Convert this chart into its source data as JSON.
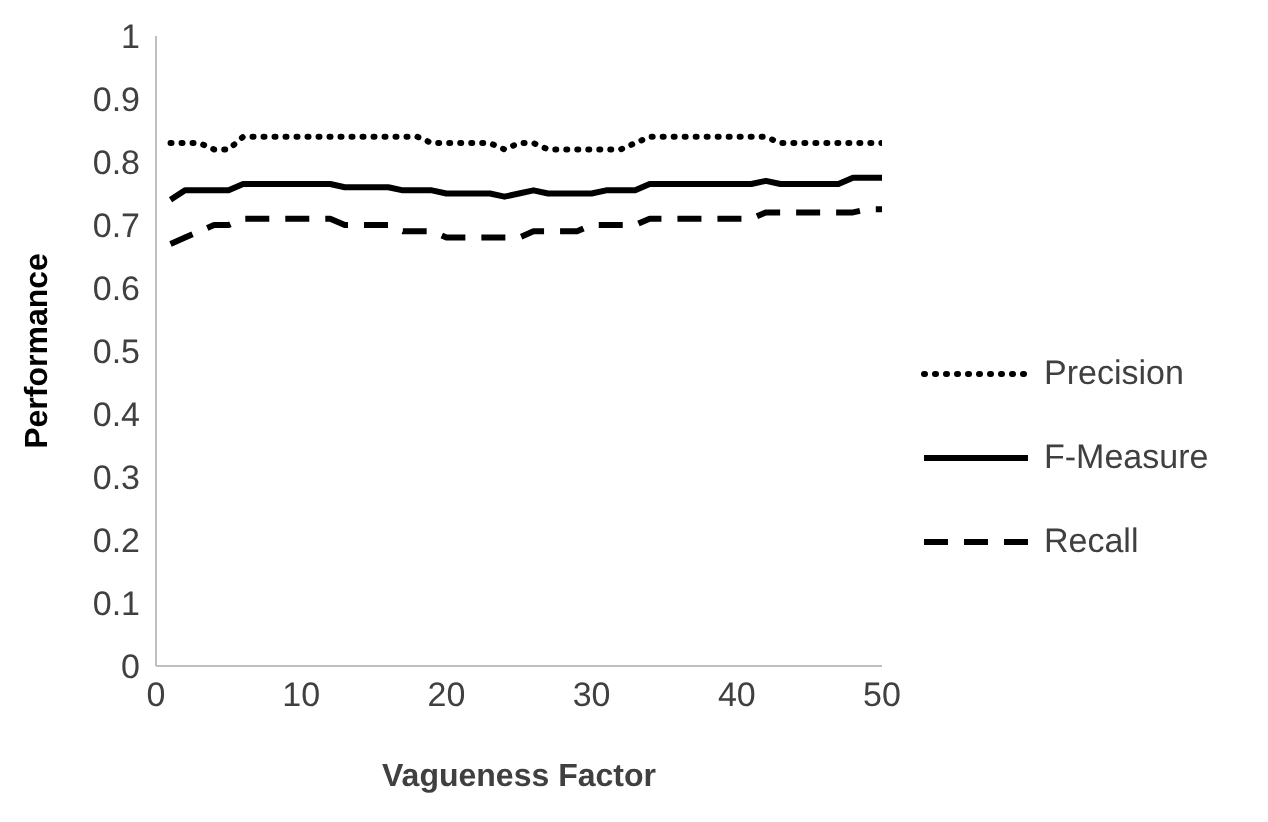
{
  "chart_data": {
    "type": "line",
    "xlabel": "Vagueness Factor",
    "ylabel": "Performance",
    "x": [
      1,
      2,
      3,
      4,
      5,
      6,
      7,
      8,
      9,
      10,
      11,
      12,
      13,
      14,
      15,
      16,
      17,
      18,
      19,
      20,
      21,
      22,
      23,
      24,
      25,
      26,
      27,
      28,
      29,
      30,
      31,
      32,
      33,
      34,
      35,
      36,
      37,
      38,
      39,
      40,
      41,
      42,
      43,
      44,
      45,
      46,
      47,
      48,
      49,
      50
    ],
    "series": [
      {
        "name": "Precision",
        "color": "#000000",
        "line_style": "dotted",
        "values": [
          0.83,
          0.83,
          0.83,
          0.82,
          0.82,
          0.84,
          0.84,
          0.84,
          0.84,
          0.84,
          0.84,
          0.84,
          0.84,
          0.84,
          0.84,
          0.84,
          0.84,
          0.84,
          0.83,
          0.83,
          0.83,
          0.83,
          0.83,
          0.82,
          0.83,
          0.83,
          0.82,
          0.82,
          0.82,
          0.82,
          0.82,
          0.82,
          0.83,
          0.84,
          0.84,
          0.84,
          0.84,
          0.84,
          0.84,
          0.84,
          0.84,
          0.84,
          0.83,
          0.83,
          0.83,
          0.83,
          0.83,
          0.83,
          0.83,
          0.83
        ]
      },
      {
        "name": "F-Measure",
        "color": "#000000",
        "line_style": "solid",
        "values": [
          0.74,
          0.755,
          0.755,
          0.755,
          0.755,
          0.765,
          0.765,
          0.765,
          0.765,
          0.765,
          0.765,
          0.765,
          0.76,
          0.76,
          0.76,
          0.76,
          0.755,
          0.755,
          0.755,
          0.75,
          0.75,
          0.75,
          0.75,
          0.745,
          0.75,
          0.755,
          0.75,
          0.75,
          0.75,
          0.75,
          0.755,
          0.755,
          0.755,
          0.765,
          0.765,
          0.765,
          0.765,
          0.765,
          0.765,
          0.765,
          0.765,
          0.77,
          0.765,
          0.765,
          0.765,
          0.765,
          0.765,
          0.775,
          0.775,
          0.775
        ]
      },
      {
        "name": "Recall",
        "color": "#000000",
        "line_style": "dashed",
        "values": [
          0.67,
          0.68,
          0.69,
          0.7,
          0.7,
          0.71,
          0.71,
          0.71,
          0.71,
          0.71,
          0.71,
          0.71,
          0.7,
          0.7,
          0.7,
          0.7,
          0.69,
          0.69,
          0.69,
          0.68,
          0.68,
          0.68,
          0.68,
          0.68,
          0.68,
          0.69,
          0.69,
          0.69,
          0.69,
          0.7,
          0.7,
          0.7,
          0.7,
          0.71,
          0.71,
          0.71,
          0.71,
          0.71,
          0.71,
          0.71,
          0.71,
          0.72,
          0.72,
          0.72,
          0.72,
          0.72,
          0.72,
          0.72,
          0.725,
          0.725
        ]
      }
    ],
    "xlim": [
      0,
      50
    ],
    "xticks": [
      0,
      10,
      20,
      30,
      40,
      50
    ],
    "ylim": [
      0,
      1
    ],
    "yticks": [
      0,
      0.1,
      0.2,
      0.3,
      0.4,
      0.5,
      0.6,
      0.7,
      0.8,
      0.9,
      1
    ],
    "grid": false,
    "legend": "right",
    "marker": "none"
  }
}
